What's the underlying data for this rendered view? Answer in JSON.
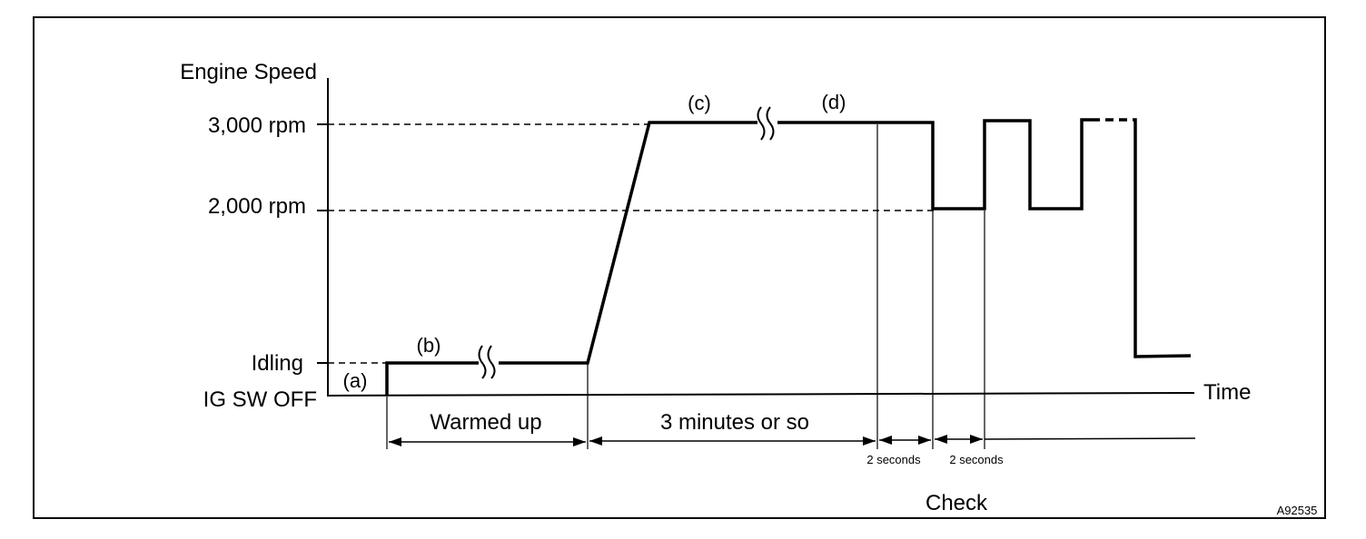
{
  "diagram": {
    "y_axis_title": "Engine Speed",
    "levels": {
      "rpm_3000": "3,000 rpm",
      "rpm_2000": "2,000 rpm",
      "idling": "Idling",
      "ig_sw_off": "IG SW OFF"
    },
    "x_axis_title": "Time",
    "phase_labels": {
      "a": "(a)",
      "b": "(b)",
      "c": "(c)",
      "d": "(d)"
    },
    "intervals": {
      "warmed_up": "Warmed up",
      "three_minutes": "3 minutes or so",
      "two_seconds_1": "2 seconds",
      "two_seconds_2": "2 seconds"
    },
    "check_label": "Check",
    "figure_code": "A92535"
  }
}
